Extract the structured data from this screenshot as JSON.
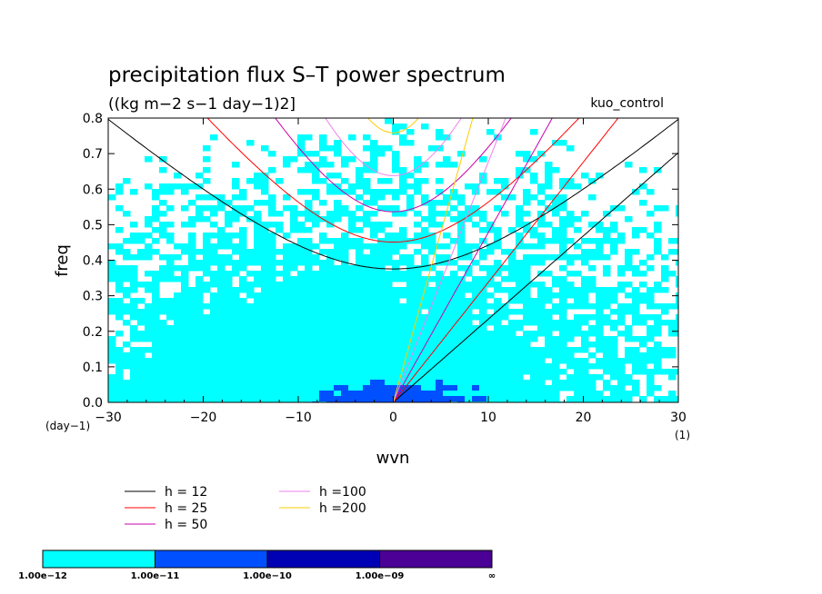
{
  "chart_data": {
    "type": "heatmap",
    "title": "precipitation flux S–T power spectrum",
    "subtitle": "((kg m−2 s−1 day−1)2]",
    "tag": "kuo_control",
    "xlabel": "wvn",
    "ylabel": "freq",
    "x_unit": "(1)",
    "y_unit": "(day−1)",
    "xlim": [
      -30,
      30
    ],
    "ylim": [
      0,
      0.8
    ],
    "x_ticks": [
      -30,
      -20,
      -10,
      0,
      10,
      20,
      30
    ],
    "x_tick_labels": [
      "−30",
      "−20",
      "−10",
      "0",
      "10",
      "20",
      "30"
    ],
    "y_ticks": [
      0.0,
      0.1,
      0.2,
      0.3,
      0.4,
      0.5,
      0.6,
      0.7,
      0.8
    ],
    "y_tick_labels": [
      "0.0",
      "0.1",
      "0.2",
      "0.3",
      "0.4",
      "0.5",
      "0.6",
      "0.7",
      "0.8"
    ],
    "contour_levels": [
      {
        "label": "1.00e−12",
        "color": "#00ffff"
      },
      {
        "label": "1.00e−11",
        "color": "#0050ff"
      },
      {
        "label": "1.00e−10",
        "color": "#0000b4"
      },
      {
        "label": "1.00e−09",
        "color": "#4b0096"
      },
      {
        "label": "∞",
        "color": ""
      }
    ],
    "series": [
      {
        "name": "h = 12",
        "h": 12,
        "color": "#000000"
      },
      {
        "name": "h = 25",
        "h": 25,
        "color": "#ff0000"
      },
      {
        "name": "h = 50",
        "h": 50,
        "color": "#cc00aa"
      },
      {
        "name": "h =100",
        "h": 100,
        "color": "#ee82ee"
      },
      {
        "name": "h =200",
        "h": 200,
        "color": "#ffcc00"
      }
    ],
    "legend_placement": "bottom"
  }
}
